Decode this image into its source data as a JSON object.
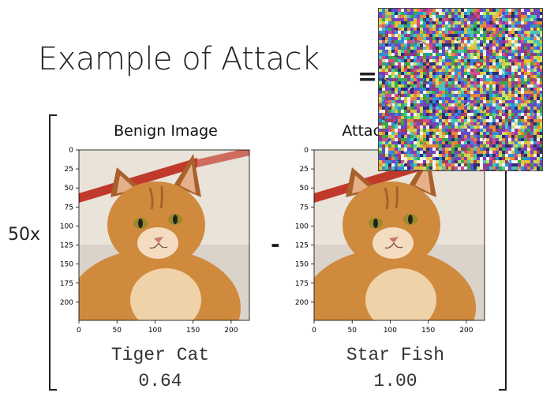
{
  "slide": {
    "title": "Example of Attack",
    "equals_sign": "=",
    "minus_sign": "-",
    "multiplier": "50x"
  },
  "benign": {
    "title": "Benign Image",
    "label": "Tiger Cat",
    "confidence": "0.64",
    "image_icon": "orange-tabby-cat-photo"
  },
  "attacked": {
    "title": "Attacked Image",
    "label": "Star Fish",
    "confidence": "1.00",
    "image_icon": "orange-tabby-cat-photo"
  },
  "noise": {
    "image_icon": "rainbow-noise-perturbation"
  },
  "axes": {
    "x_ticks": [
      "0",
      "50",
      "100",
      "150",
      "200"
    ],
    "y_ticks": [
      "0",
      "25",
      "50",
      "75",
      "100",
      "125",
      "150",
      "175",
      "200"
    ]
  },
  "colors": {
    "fur": "#d08a3e",
    "fur_dark": "#a8612a",
    "background": "#e9e3da",
    "stripe": "#c0392b",
    "eyes": "#9a8a2a"
  }
}
